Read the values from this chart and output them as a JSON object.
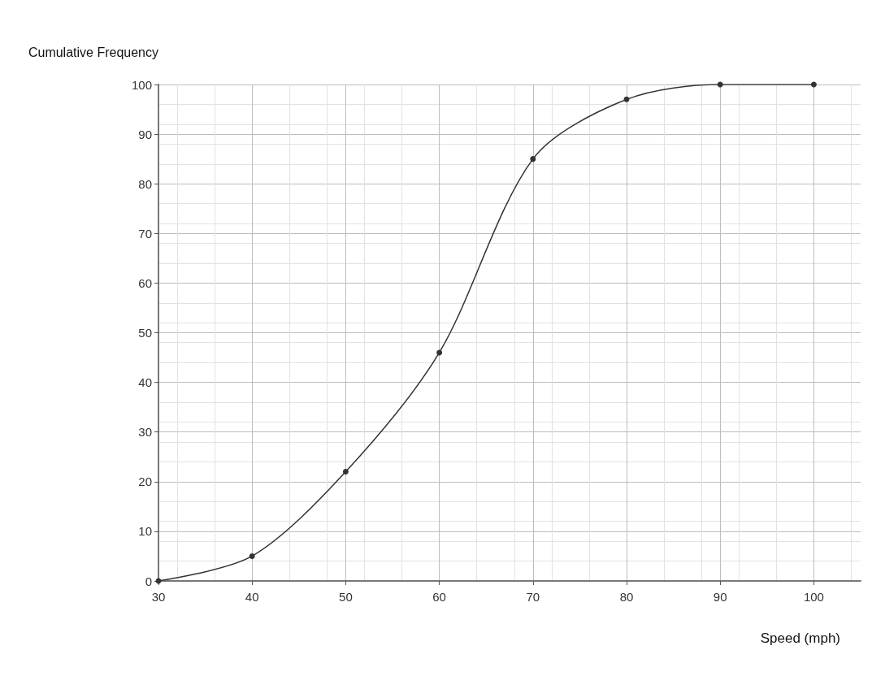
{
  "chart_data": {
    "type": "line",
    "xlabel": "Speed (mph)",
    "ylabel": "Cumulative Frequency",
    "x": [
      30,
      40,
      50,
      60,
      70,
      80,
      90,
      100
    ],
    "series": [
      {
        "color": "#333333",
        "values": [
          0,
          5,
          22,
          46,
          85,
          97,
          100,
          100
        ]
      }
    ],
    "xlim": [
      30,
      105
    ],
    "xticks": [
      30,
      40,
      50,
      60,
      70,
      80,
      90,
      100
    ],
    "ylim": [
      0,
      100
    ],
    "yticks": [
      0,
      10,
      20,
      30,
      40,
      50,
      60,
      70,
      80,
      90,
      100
    ],
    "grid": true,
    "marker": "circle",
    "line_style": "solid"
  }
}
